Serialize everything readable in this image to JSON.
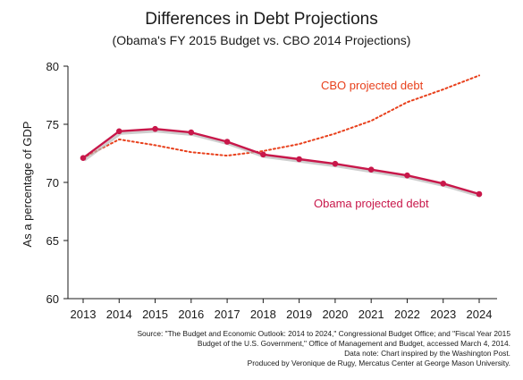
{
  "chart_data": {
    "type": "line",
    "title": "Differences in Debt Projections",
    "subtitle": "(Obama's FY 2015 Budget vs. CBO 2014 Projections)",
    "ylabel": "As a percentage of GDP",
    "xlabel": "",
    "ylim": [
      60,
      80
    ],
    "yticks": [
      60,
      65,
      70,
      75,
      80
    ],
    "x": [
      "2013",
      "2014",
      "2015",
      "2016",
      "2017",
      "2018",
      "2019",
      "2020",
      "2021",
      "2022",
      "2023",
      "2024"
    ],
    "grid": false,
    "series": [
      {
        "name": "CBO projected debt",
        "style": "dotted",
        "color": "#e8401c",
        "values": [
          72.1,
          73.7,
          73.2,
          72.6,
          72.3,
          72.7,
          73.3,
          74.2,
          75.3,
          76.9,
          78.0,
          79.2
        ]
      },
      {
        "name": "Obama projected debt",
        "style": "solid-with-markers",
        "color": "#c8174a",
        "values": [
          72.1,
          74.4,
          74.6,
          74.3,
          73.5,
          72.4,
          72.0,
          71.6,
          71.1,
          70.6,
          69.9,
          69.0
        ]
      }
    ]
  },
  "source_note": {
    "lines": [
      "Source: \"The Budget and Economic Outlook: 2014 to 2024,\" Congressional Budget Office; and \"Fiscal Year 2015",
      "Budget of the U.S. Government,\" Office of Management and Budget, accessed March 4, 2014.",
      "Data note: Chart inspired by the Washington Post.",
      "Produced by Veronique de Rugy, Mercatus Center at George Mason University."
    ]
  }
}
